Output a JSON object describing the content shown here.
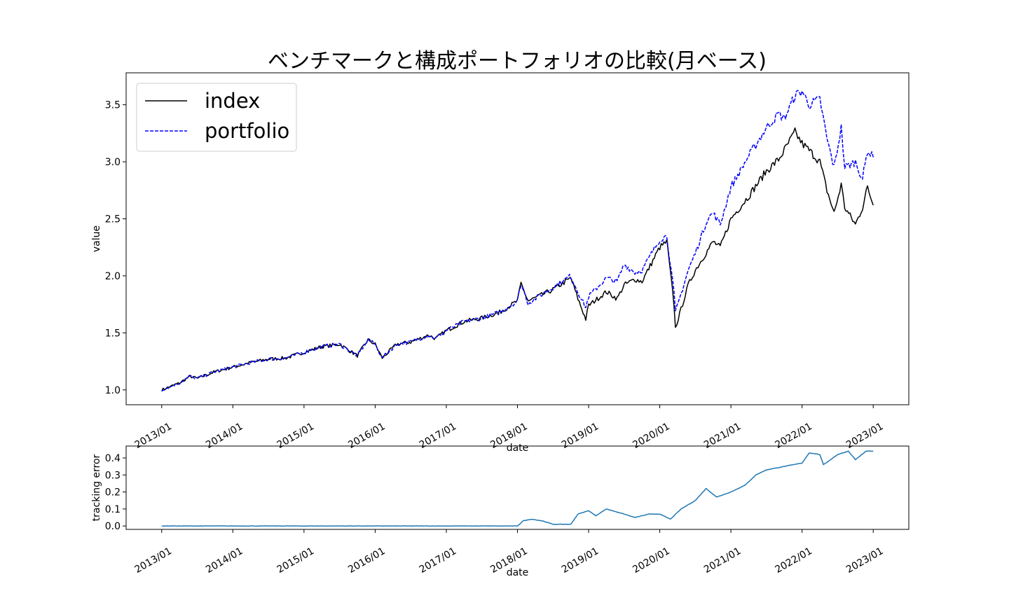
{
  "chart_data": [
    {
      "type": "line",
      "title": "ベンチマークと構成ポートフォリオの比較(月ベース)",
      "xlabel": "date",
      "ylabel": "value",
      "x_tick_labels": [
        "2013/01",
        "2014/01",
        "2015/01",
        "2016/01",
        "2017/01",
        "2018/01",
        "2019/01",
        "2020/01",
        "2021/01",
        "2022/01",
        "2023/01"
      ],
      "yticks": [
        1.0,
        1.5,
        2.0,
        2.5,
        3.0,
        3.5
      ],
      "ytick_labels": [
        "1.0",
        "1.5",
        "2.0",
        "2.5",
        "3.0",
        "3.5"
      ],
      "ylim": [
        0.87,
        3.78
      ],
      "xlim": [
        2012.5,
        2023.5
      ],
      "grid": false,
      "legend_position": "top-left",
      "series": [
        {
          "name": "index",
          "color": "#000000",
          "style": "solid",
          "points": [
            [
              2013.0,
              1.0
            ],
            [
              2013.25,
              1.06
            ],
            [
              2013.4,
              1.12
            ],
            [
              2013.5,
              1.1
            ],
            [
              2013.75,
              1.16
            ],
            [
              2014.0,
              1.2
            ],
            [
              2014.25,
              1.24
            ],
            [
              2014.5,
              1.27
            ],
            [
              2014.75,
              1.28
            ],
            [
              2015.0,
              1.33
            ],
            [
              2015.25,
              1.38
            ],
            [
              2015.5,
              1.4
            ],
            [
              2015.75,
              1.3
            ],
            [
              2015.9,
              1.44
            ],
            [
              2016.0,
              1.4
            ],
            [
              2016.1,
              1.28
            ],
            [
              2016.3,
              1.4
            ],
            [
              2016.5,
              1.42
            ],
            [
              2016.75,
              1.48
            ],
            [
              2016.85,
              1.45
            ],
            [
              2017.0,
              1.52
            ],
            [
              2017.25,
              1.6
            ],
            [
              2017.5,
              1.63
            ],
            [
              2017.75,
              1.68
            ],
            [
              2018.0,
              1.78
            ],
            [
              2018.05,
              1.93
            ],
            [
              2018.15,
              1.78
            ],
            [
              2018.3,
              1.82
            ],
            [
              2018.5,
              1.88
            ],
            [
              2018.75,
              1.98
            ],
            [
              2018.85,
              1.8
            ],
            [
              2018.96,
              1.62
            ],
            [
              2019.0,
              1.74
            ],
            [
              2019.25,
              1.86
            ],
            [
              2019.4,
              1.8
            ],
            [
              2019.5,
              1.92
            ],
            [
              2019.65,
              1.97
            ],
            [
              2019.75,
              1.95
            ],
            [
              2020.0,
              2.25
            ],
            [
              2020.1,
              2.3
            ],
            [
              2020.2,
              1.75
            ],
            [
              2020.22,
              1.54
            ],
            [
              2020.4,
              1.92
            ],
            [
              2020.5,
              2.05
            ],
            [
              2020.67,
              2.22
            ],
            [
              2020.75,
              2.3
            ],
            [
              2020.85,
              2.25
            ],
            [
              2021.0,
              2.5
            ],
            [
              2021.25,
              2.7
            ],
            [
              2021.5,
              2.92
            ],
            [
              2021.67,
              3.02
            ],
            [
              2021.75,
              3.1
            ],
            [
              2021.9,
              3.26
            ],
            [
              2022.0,
              3.16
            ],
            [
              2022.1,
              3.1
            ],
            [
              2022.25,
              3.0
            ],
            [
              2022.35,
              2.75
            ],
            [
              2022.45,
              2.55
            ],
            [
              2022.55,
              2.8
            ],
            [
              2022.6,
              2.6
            ],
            [
              2022.75,
              2.45
            ],
            [
              2022.85,
              2.6
            ],
            [
              2022.92,
              2.78
            ],
            [
              2023.0,
              2.62
            ]
          ]
        },
        {
          "name": "portfolio",
          "color": "#0000ff",
          "style": "dashed",
          "points": [
            [
              2013.0,
              1.0
            ],
            [
              2013.25,
              1.06
            ],
            [
              2013.4,
              1.12
            ],
            [
              2013.5,
              1.1
            ],
            [
              2013.75,
              1.16
            ],
            [
              2014.0,
              1.2
            ],
            [
              2014.25,
              1.24
            ],
            [
              2014.5,
              1.27
            ],
            [
              2014.75,
              1.28
            ],
            [
              2015.0,
              1.33
            ],
            [
              2015.25,
              1.38
            ],
            [
              2015.5,
              1.4
            ],
            [
              2015.75,
              1.3
            ],
            [
              2015.9,
              1.44
            ],
            [
              2016.0,
              1.4
            ],
            [
              2016.1,
              1.28
            ],
            [
              2016.3,
              1.4
            ],
            [
              2016.5,
              1.42
            ],
            [
              2016.75,
              1.48
            ],
            [
              2016.85,
              1.45
            ],
            [
              2017.0,
              1.52
            ],
            [
              2017.25,
              1.6
            ],
            [
              2017.5,
              1.63
            ],
            [
              2017.75,
              1.68
            ],
            [
              2018.0,
              1.78
            ],
            [
              2018.05,
              1.93
            ],
            [
              2018.15,
              1.76
            ],
            [
              2018.3,
              1.82
            ],
            [
              2018.5,
              1.9
            ],
            [
              2018.75,
              2.0
            ],
            [
              2018.85,
              1.86
            ],
            [
              2018.96,
              1.72
            ],
            [
              2019.0,
              1.82
            ],
            [
              2019.25,
              1.98
            ],
            [
              2019.4,
              1.95
            ],
            [
              2019.5,
              2.1
            ],
            [
              2019.65,
              2.03
            ],
            [
              2019.75,
              2.05
            ],
            [
              2020.0,
              2.32
            ],
            [
              2020.1,
              2.35
            ],
            [
              2020.2,
              1.85
            ],
            [
              2020.22,
              1.68
            ],
            [
              2020.4,
              2.05
            ],
            [
              2020.5,
              2.2
            ],
            [
              2020.67,
              2.5
            ],
            [
              2020.75,
              2.55
            ],
            [
              2020.85,
              2.45
            ],
            [
              2021.0,
              2.78
            ],
            [
              2021.25,
              3.05
            ],
            [
              2021.5,
              3.3
            ],
            [
              2021.67,
              3.42
            ],
            [
              2021.75,
              3.38
            ],
            [
              2021.9,
              3.58
            ],
            [
              2022.0,
              3.62
            ],
            [
              2022.1,
              3.5
            ],
            [
              2022.25,
              3.55
            ],
            [
              2022.35,
              3.2
            ],
            [
              2022.45,
              2.95
            ],
            [
              2022.55,
              3.3
            ],
            [
              2022.6,
              2.95
            ],
            [
              2022.75,
              3.0
            ],
            [
              2022.85,
              2.85
            ],
            [
              2022.92,
              3.1
            ],
            [
              2023.0,
              3.04
            ]
          ]
        }
      ]
    },
    {
      "type": "line",
      "xlabel": "date",
      "ylabel": "tracking error",
      "x_tick_labels": [
        "2013/01",
        "2014/01",
        "2015/01",
        "2016/01",
        "2017/01",
        "2018/01",
        "2019/01",
        "2020/01",
        "2021/01",
        "2022/01",
        "2023/01"
      ],
      "yticks": [
        0.0,
        0.1,
        0.2,
        0.3,
        0.4
      ],
      "ytick_labels": [
        "0.0",
        "0.1",
        "0.2",
        "0.3",
        "0.4"
      ],
      "ylim": [
        -0.02,
        0.47
      ],
      "xlim": [
        2012.5,
        2023.5
      ],
      "grid": false,
      "series": [
        {
          "color": "#1f77b4",
          "style": "solid",
          "points": [
            [
              2013.0,
              0.0
            ],
            [
              2018.0,
              0.0
            ],
            [
              2018.08,
              0.03
            ],
            [
              2018.2,
              0.04
            ],
            [
              2018.35,
              0.03
            ],
            [
              2018.5,
              0.01
            ],
            [
              2018.75,
              0.01
            ],
            [
              2018.85,
              0.07
            ],
            [
              2019.0,
              0.09
            ],
            [
              2019.1,
              0.06
            ],
            [
              2019.25,
              0.1
            ],
            [
              2019.5,
              0.07
            ],
            [
              2019.65,
              0.05
            ],
            [
              2019.85,
              0.07
            ],
            [
              2020.0,
              0.07
            ],
            [
              2020.15,
              0.04
            ],
            [
              2020.3,
              0.1
            ],
            [
              2020.5,
              0.15
            ],
            [
              2020.65,
              0.22
            ],
            [
              2020.8,
              0.17
            ],
            [
              2021.0,
              0.2
            ],
            [
              2021.2,
              0.24
            ],
            [
              2021.35,
              0.3
            ],
            [
              2021.5,
              0.33
            ],
            [
              2021.75,
              0.35
            ],
            [
              2022.0,
              0.37
            ],
            [
              2022.1,
              0.43
            ],
            [
              2022.25,
              0.42
            ],
            [
              2022.3,
              0.36
            ],
            [
              2022.5,
              0.42
            ],
            [
              2022.65,
              0.44
            ],
            [
              2022.75,
              0.39
            ],
            [
              2022.9,
              0.44
            ],
            [
              2023.0,
              0.44
            ]
          ]
        }
      ]
    }
  ]
}
